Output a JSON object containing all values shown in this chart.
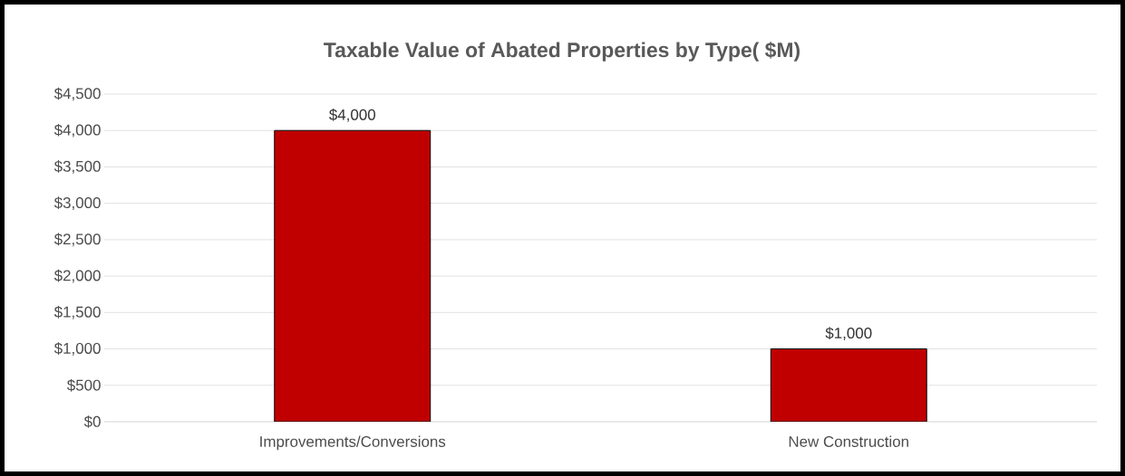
{
  "chart_data": {
    "type": "bar",
    "title": "Taxable Value of Abated Properties by Type( $M)",
    "categories": [
      "Improvements/Conversions",
      "New Construction"
    ],
    "values": [
      4000,
      1000
    ],
    "color": "#c00000",
    "value_labels": [
      "$4,000",
      "$1,000"
    ],
    "ylim": [
      0,
      4500
    ],
    "yticks": [
      {
        "value": 0,
        "label": "$0"
      },
      {
        "value": 500,
        "label": "$500"
      },
      {
        "value": 1000,
        "label": "$1,000"
      },
      {
        "value": 1500,
        "label": "$1,500"
      },
      {
        "value": 2000,
        "label": "$2,000"
      },
      {
        "value": 2500,
        "label": "$2,500"
      },
      {
        "value": 3000,
        "label": "$3,000"
      },
      {
        "value": 3500,
        "label": "$3,500"
      },
      {
        "value": 4000,
        "label": "$4,000"
      },
      {
        "value": 4500,
        "label": "$4,500"
      }
    ],
    "grid": "y"
  }
}
